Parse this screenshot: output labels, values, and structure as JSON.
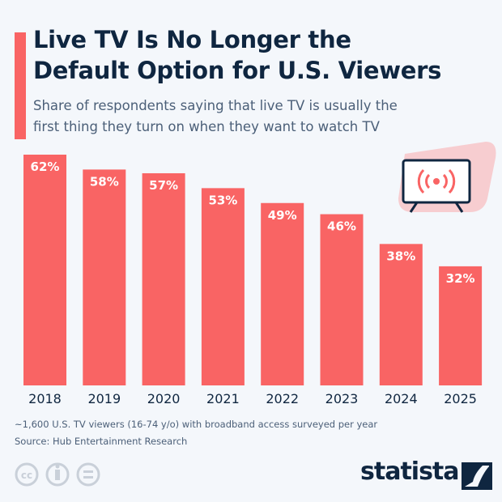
{
  "title_lines": [
    "Live TV Is No Longer the",
    "Default Option for U.S. Viewers"
  ],
  "subtitle_lines": [
    "Share of respondents saying that live TV is usually the",
    "first thing they turn on when they want to watch TV"
  ],
  "footnote": "~1,600 U.S. TV viewers (16-74 y/o) with broadband access surveyed per year",
  "source": "Source: Hub Entertainment Research",
  "logo": "statista",
  "colors": {
    "bar": "#f96464",
    "title": "#0f2640",
    "text": "#4b5f78",
    "background": "#f4f7fb"
  },
  "icons": [
    "live-tv-broadcast-icon",
    "cc-license-icon",
    "attribution-icon",
    "no-derivatives-icon",
    "statista-logo-icon"
  ],
  "chart_data": {
    "type": "bar",
    "categories": [
      "2018",
      "2019",
      "2020",
      "2021",
      "2022",
      "2023",
      "2024",
      "2025"
    ],
    "values": [
      62,
      58,
      57,
      53,
      49,
      46,
      38,
      32
    ],
    "data_labels": [
      "62%",
      "58%",
      "57%",
      "53%",
      "49%",
      "46%",
      "38%",
      "32%"
    ],
    "unit": "%",
    "ylim": [
      0,
      62
    ],
    "grid": false,
    "legend": "none"
  }
}
